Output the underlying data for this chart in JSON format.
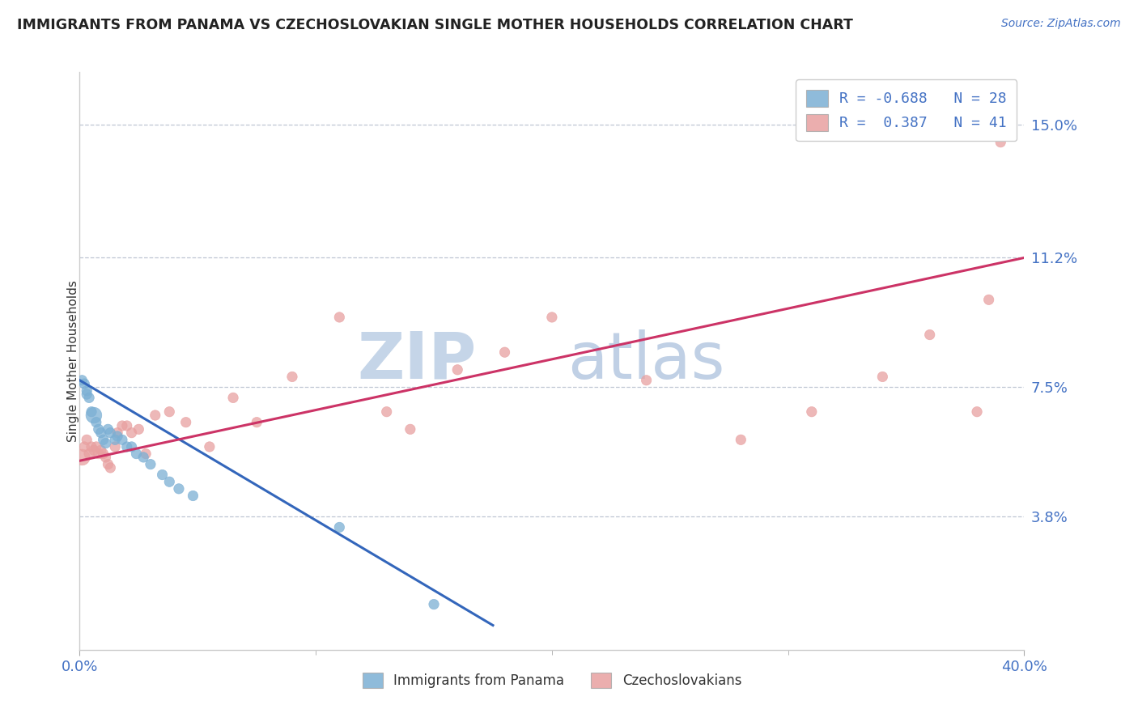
{
  "title": "IMMIGRANTS FROM PANAMA VS CZECHOSLOVAKIAN SINGLE MOTHER HOUSEHOLDS CORRELATION CHART",
  "source_text": "Source: ZipAtlas.com",
  "ylabel": "Single Mother Households",
  "xlim": [
    0.0,
    0.4
  ],
  "ylim": [
    0.0,
    0.165
  ],
  "yticks": [
    0.038,
    0.075,
    0.112,
    0.15
  ],
  "yticklabels": [
    "3.8%",
    "7.5%",
    "11.2%",
    "15.0%"
  ],
  "xtick_major": [
    0.0,
    0.4
  ],
  "xticklabels": [
    "0.0%",
    "40.0%"
  ],
  "xtick_minor": [
    0.1,
    0.2,
    0.3
  ],
  "legend_label_blue": "R = -0.688   N = 28",
  "legend_label_pink": "R =  0.387   N = 41",
  "bottom_legend_blue": "Immigrants from Panama",
  "bottom_legend_pink": "Czechoslovakians",
  "blue_color": "#7bafd4",
  "pink_color": "#e8a0a0",
  "blue_line_color": "#3366bb",
  "pink_line_color": "#cc3366",
  "grid_color": "#b0b8c8",
  "watermark_zip_color": "#c5d5e8",
  "watermark_atlas_color": "#c0d0e5",
  "tick_color": "#4472c4",
  "title_color": "#222222",
  "source_color": "#4472c4",
  "blue_line_x": [
    0.0,
    0.175
  ],
  "blue_line_y": [
    0.077,
    0.007
  ],
  "pink_line_x": [
    0.0,
    0.4
  ],
  "pink_line_y": [
    0.054,
    0.112
  ],
  "blue_x": [
    0.001,
    0.002,
    0.003,
    0.003,
    0.004,
    0.005,
    0.006,
    0.007,
    0.008,
    0.009,
    0.01,
    0.011,
    0.012,
    0.013,
    0.015,
    0.016,
    0.018,
    0.02,
    0.022,
    0.024,
    0.027,
    0.03,
    0.035,
    0.038,
    0.042,
    0.048,
    0.11,
    0.15
  ],
  "blue_y": [
    0.077,
    0.076,
    0.074,
    0.073,
    0.072,
    0.068,
    0.067,
    0.065,
    0.063,
    0.062,
    0.06,
    0.059,
    0.063,
    0.062,
    0.06,
    0.061,
    0.06,
    0.058,
    0.058,
    0.056,
    0.055,
    0.053,
    0.05,
    0.048,
    0.046,
    0.044,
    0.035,
    0.013
  ],
  "blue_sizes": [
    80,
    80,
    80,
    80,
    80,
    80,
    200,
    80,
    80,
    80,
    80,
    80,
    80,
    80,
    80,
    80,
    80,
    80,
    80,
    80,
    80,
    80,
    80,
    80,
    80,
    80,
    80,
    80
  ],
  "pink_x": [
    0.001,
    0.002,
    0.003,
    0.004,
    0.005,
    0.006,
    0.007,
    0.008,
    0.009,
    0.01,
    0.011,
    0.012,
    0.013,
    0.015,
    0.016,
    0.018,
    0.02,
    0.022,
    0.025,
    0.028,
    0.032,
    0.038,
    0.045,
    0.055,
    0.065,
    0.075,
    0.09,
    0.11,
    0.13,
    0.14,
    0.16,
    0.18,
    0.2,
    0.24,
    0.28,
    0.31,
    0.34,
    0.36,
    0.38,
    0.385,
    0.39
  ],
  "pink_y": [
    0.055,
    0.058,
    0.06,
    0.056,
    0.058,
    0.057,
    0.058,
    0.056,
    0.057,
    0.056,
    0.055,
    0.053,
    0.052,
    0.058,
    0.062,
    0.064,
    0.064,
    0.062,
    0.063,
    0.056,
    0.067,
    0.068,
    0.065,
    0.058,
    0.072,
    0.065,
    0.078,
    0.095,
    0.068,
    0.063,
    0.08,
    0.085,
    0.095,
    0.077,
    0.06,
    0.068,
    0.078,
    0.09,
    0.068,
    0.1,
    0.145
  ],
  "pink_sizes": [
    200,
    80,
    80,
    80,
    80,
    80,
    80,
    80,
    80,
    80,
    80,
    80,
    80,
    80,
    80,
    80,
    80,
    80,
    80,
    80,
    80,
    80,
    80,
    80,
    80,
    80,
    80,
    80,
    80,
    80,
    80,
    80,
    80,
    80,
    80,
    80,
    80,
    80,
    80,
    80,
    80
  ]
}
